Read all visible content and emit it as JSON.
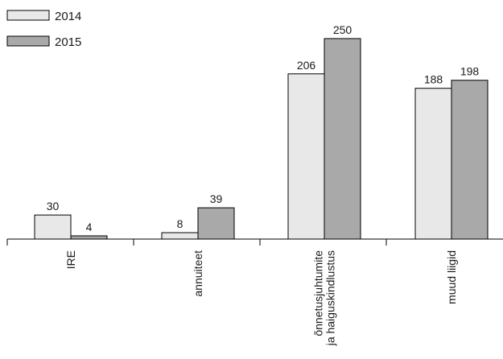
{
  "chart_data": {
    "type": "bar",
    "title": "",
    "xlabel": "",
    "ylabel": "",
    "ylim": [
      0,
      270
    ],
    "grid": false,
    "legend_position": "top-left",
    "categories": [
      [
        "IRE"
      ],
      [
        "annuiteet"
      ],
      [
        "õnnetusjuhtumite",
        "ja haiguskindlustus"
      ],
      [
        "muud liigid"
      ]
    ],
    "series": [
      {
        "name": "2014",
        "values": [
          30,
          8,
          206,
          188
        ],
        "color": "#e8e8e8"
      },
      {
        "name": "2015",
        "values": [
          4,
          39,
          250,
          198
        ],
        "color": "#a9a9a9"
      }
    ]
  }
}
